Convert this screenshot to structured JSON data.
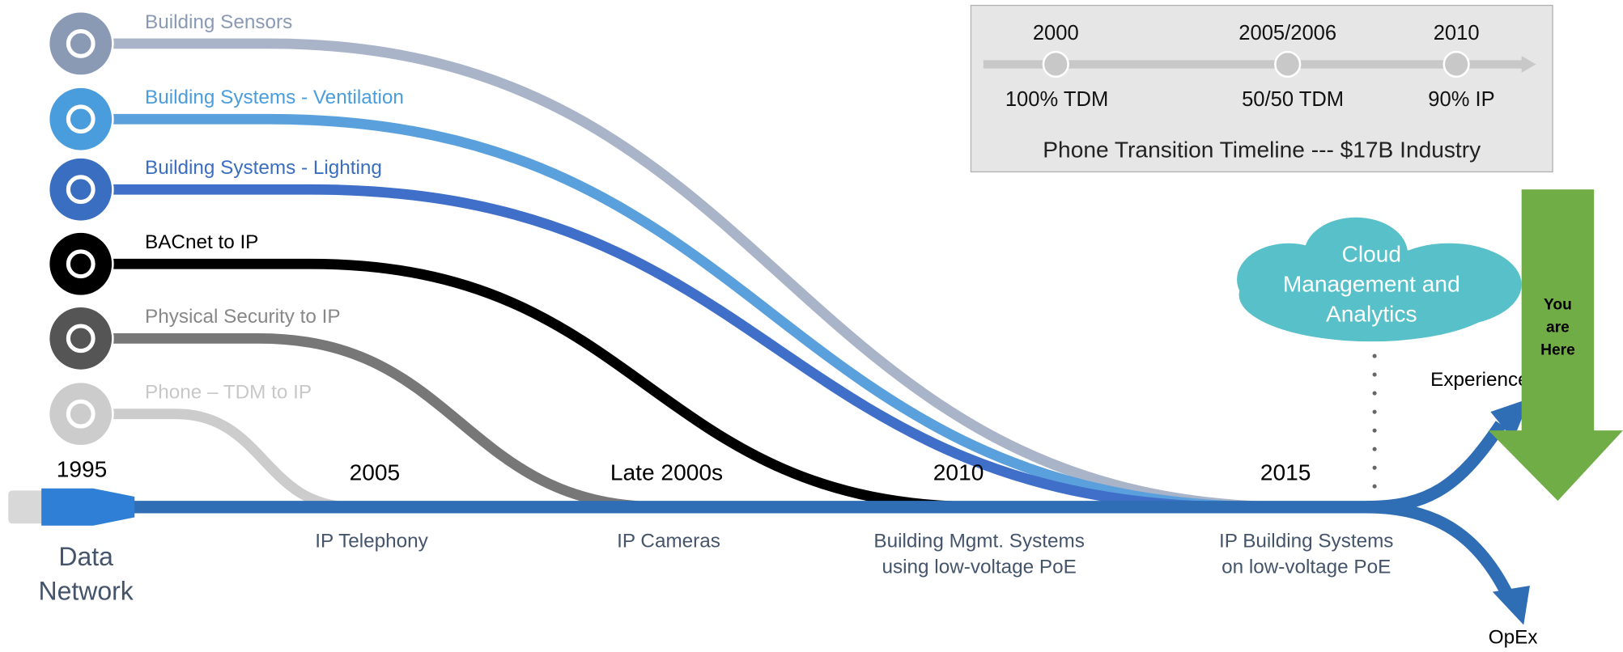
{
  "streams": [
    {
      "label": "Building Sensors"
    },
    {
      "label": "Building Systems - Ventilation"
    },
    {
      "label": "Building Systems - Lighting"
    },
    {
      "label": "BACnet to IP"
    },
    {
      "label": "Physical Security to IP"
    },
    {
      "label": "Phone – TDM to IP"
    }
  ],
  "milestones": [
    {
      "year": "1995"
    },
    {
      "year": "2005",
      "caption": [
        "IP Telephony"
      ]
    },
    {
      "year": "Late 2000s",
      "caption": [
        "IP Cameras"
      ]
    },
    {
      "year": "2010",
      "caption": [
        "Building Mgmt. Systems",
        "using low-voltage PoE"
      ]
    },
    {
      "year": "2015",
      "caption": [
        "IP Building Systems",
        "on low-voltage PoE"
      ]
    }
  ],
  "base_label": [
    "Data",
    "Network"
  ],
  "phone_timeline": {
    "points": [
      {
        "year": "2000",
        "label": "100% TDM"
      },
      {
        "year": "2005/2006",
        "label": "50/50 TDM"
      },
      {
        "year": "2010",
        "label": "90% IP"
      }
    ],
    "title": "Phone Transition Timeline --- $17B Industry"
  },
  "cloud": [
    "Cloud",
    "Management and",
    "Analytics"
  ],
  "outputs": [
    "Experience",
    "OpEx"
  ],
  "marker": [
    "You",
    "are",
    "Here"
  ]
}
